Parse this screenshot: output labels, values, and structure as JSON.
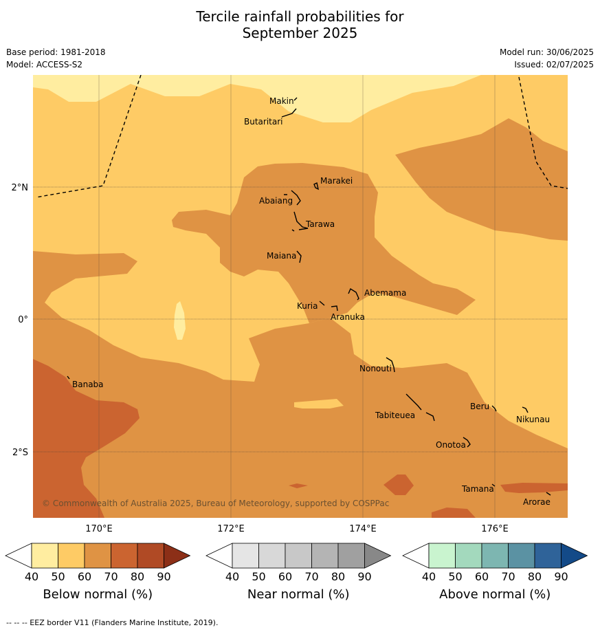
{
  "title_line1": "Tercile rainfall probabilities for",
  "title_line2": "September 2025",
  "meta": {
    "base_period": "Base period: 1981-2018",
    "model": "Model: ACCESS-S2",
    "model_run": "Model run: 30/06/2025",
    "issued": "Issued: 02/07/2025"
  },
  "axes": {
    "x_ticks": [
      "170°E",
      "172°E",
      "174°E",
      "176°E"
    ],
    "y_ticks": [
      "2°N",
      "0°",
      "2°S"
    ]
  },
  "places": {
    "makin": "Makin",
    "butaritari": "Butaritari",
    "marakei": "Marakei",
    "abaiang": "Abaiang",
    "tarawa": "Tarawa",
    "maiana": "Maiana",
    "abemama": "Abemama",
    "kuria": "Kuria",
    "aranuka": "Aranuka",
    "banaba": "Banaba",
    "nonouti": "Nonouti",
    "beru": "Beru",
    "tabiteuea": "Tabiteuea",
    "nikunau": "Nikunau",
    "onotoa": "Onotoa",
    "tamana": "Tamana",
    "arorae": "Arorae"
  },
  "copyright": "© Commonwealth of Australia 2025, Bureau of Meteorology, supported by COSPPac",
  "colorbars": [
    {
      "name": "Below normal (%)",
      "ticks": [
        "40",
        "50",
        "60",
        "70",
        "80",
        "90"
      ],
      "colors": [
        "#ffeda0",
        "#fecb65",
        "#df9344",
        "#cb6430",
        "#b04a25",
        "#8c2f17"
      ]
    },
    {
      "name": "Near normal (%)",
      "ticks": [
        "40",
        "50",
        "60",
        "70",
        "80",
        "90"
      ],
      "colors": [
        "#e5e5e5",
        "#d8d8d8",
        "#c8c8c8",
        "#b4b4b4",
        "#a0a0a0",
        "#888888"
      ]
    },
    {
      "name": "Above normal (%)",
      "ticks": [
        "40",
        "50",
        "60",
        "70",
        "80",
        "90"
      ],
      "colors": [
        "#c9f4cf",
        "#a3d9bd",
        "#7db6b1",
        "#5b92a3",
        "#2f6399",
        "#134a88"
      ]
    }
  ],
  "footer": "--  --  -- EEZ border V11 (Flanders Marine Institute, 2019).",
  "colors": {
    "c40": "#ffeda0",
    "c50": "#fecb65",
    "c60": "#df9344",
    "c70": "#cb6430"
  }
}
